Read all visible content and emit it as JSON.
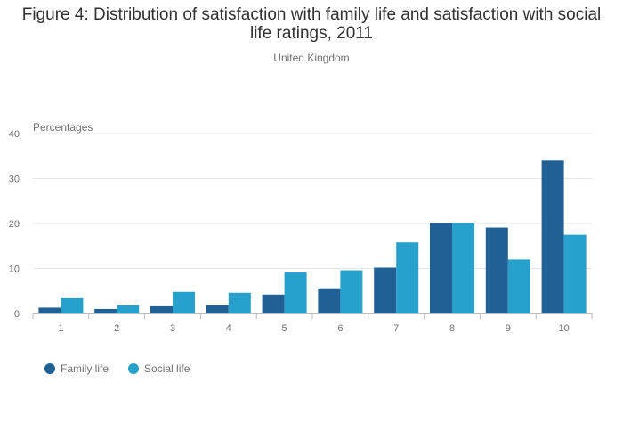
{
  "title": "Figure 4: Distribution of satisfaction with family life and satisfaction with social life ratings, 2011",
  "subtitle": "United Kingdom",
  "chart_data": {
    "type": "bar",
    "ylabel": "Percentages",
    "xlabel": "",
    "ylim": [
      0,
      40
    ],
    "yticks": [
      0,
      10,
      20,
      30,
      40
    ],
    "categories": [
      "1",
      "2",
      "3",
      "4",
      "5",
      "6",
      "7",
      "8",
      "9",
      "10"
    ],
    "series": [
      {
        "name": "Family life",
        "color": "#206095",
        "values": [
          1.3,
          1.0,
          1.6,
          1.8,
          4.2,
          5.6,
          10.2,
          20.1,
          19.1,
          34.0
        ]
      },
      {
        "name": "Social life",
        "color": "#27a0cc",
        "values": [
          3.4,
          1.8,
          4.8,
          4.6,
          9.1,
          9.6,
          15.8,
          20.1,
          12.0,
          17.5
        ]
      }
    ],
    "grid": true,
    "legend_position": "bottom-left"
  }
}
